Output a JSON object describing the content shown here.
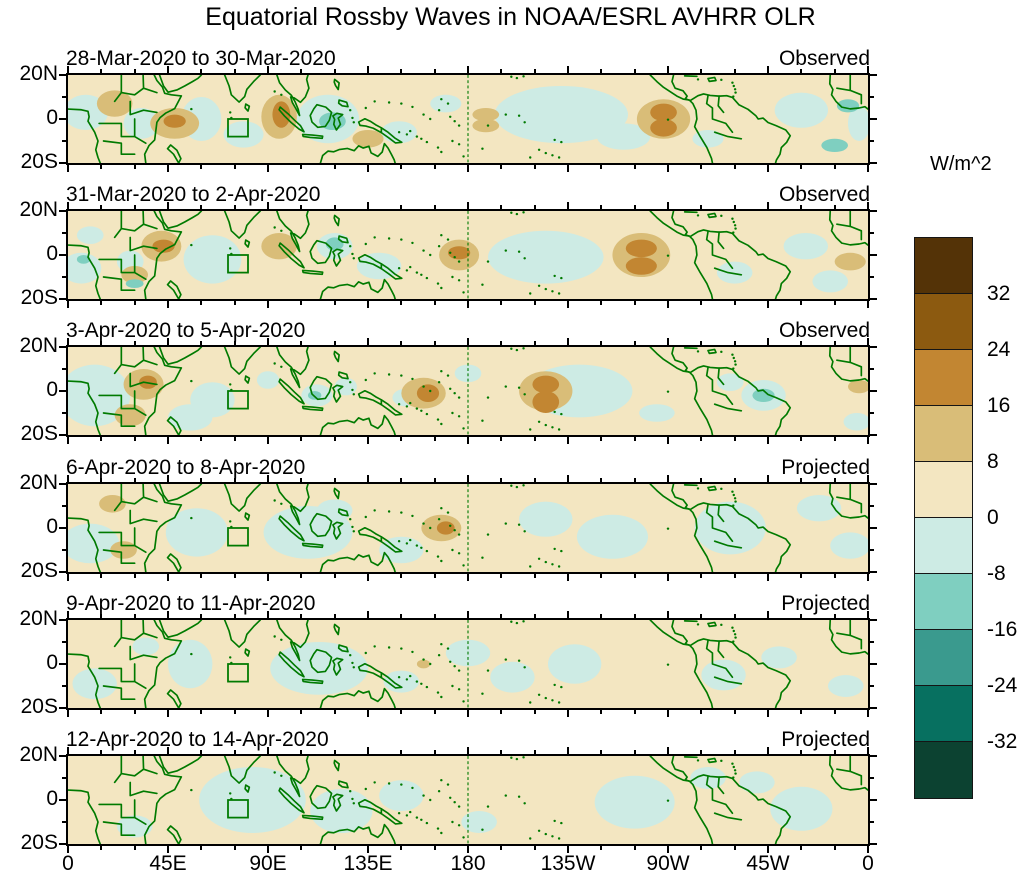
{
  "title": "Equatorial Rossby Waves in NOAA/ESRL AVHRR OLR",
  "colorbar": {
    "title": "W/m^2",
    "tick_labels": [
      "32",
      "24",
      "16",
      "8",
      "0",
      "-8",
      "-16",
      "-24",
      "-32"
    ],
    "colors": [
      "#543307",
      "#8c5a10",
      "#c28632",
      "#d9bd78",
      "#f3e6c1",
      "#cdebe4",
      "#7fcfc0",
      "#3a9a8e",
      "#077060",
      "#0c4231"
    ]
  },
  "axes": {
    "x_tick_labels": [
      "0",
      "45E",
      "90E",
      "135E",
      "180",
      "135W",
      "90W",
      "45W",
      "0"
    ],
    "y_tick_labels": [
      "20N",
      "0",
      "20S"
    ],
    "lon_span_deg": 360,
    "lat_span": "20N to 20S"
  },
  "map_style": {
    "background_color": "#f3e6c1",
    "weak_negative_color": "#cdebe4",
    "moderate_negative_color": "#7fcfc0",
    "moderate_positive_color": "#d9bd78",
    "strong_positive_color": "#c28632",
    "coastline_color": "#007a00",
    "dateline_lon": 180,
    "index_box": {
      "lon_min": 72,
      "lon_max": 81,
      "lat_max": 0,
      "lat_min": -8
    }
  },
  "chart_data": {
    "type": "heatmap",
    "title": "Equatorial Rossby Waves in NOAA/ESRL AVHRR OLR",
    "units": "W/m^2",
    "contour_levels": [
      -32,
      -24,
      -16,
      -8,
      0,
      8,
      16,
      24,
      32
    ],
    "lat_range": [
      -20,
      20
    ],
    "lon_range": [
      0,
      360
    ],
    "anomaly_format": "[lon_deg_east, lat_deg_north, lon_radius_deg, lat_radius_deg, value_w_per_m2]",
    "panels": [
      {
        "date_label": "28-Mar-2020 to 30-Mar-2020",
        "status": "Observed",
        "anomalies": [
          [
            8,
            3,
            10,
            8,
            -4
          ],
          [
            33,
            -2,
            8,
            7,
            -4
          ],
          [
            60,
            0,
            9,
            10,
            -4
          ],
          [
            79,
            -7,
            9,
            6,
            -4
          ],
          [
            117,
            0,
            14,
            11,
            -4
          ],
          [
            149,
            -6,
            8,
            5,
            -4
          ],
          [
            170,
            7,
            7,
            4,
            -4
          ],
          [
            222,
            2,
            30,
            13,
            -4
          ],
          [
            250,
            -8,
            12,
            6,
            -4
          ],
          [
            288,
            -9,
            7,
            4,
            -4
          ],
          [
            330,
            4,
            12,
            8,
            -4
          ],
          [
            356,
            -2,
            5,
            8,
            -4
          ],
          [
            21,
            7,
            8,
            6,
            12
          ],
          [
            48,
            -2,
            11,
            7,
            12
          ],
          [
            95,
            1,
            8,
            10,
            12
          ],
          [
            135,
            -9,
            7,
            4,
            12
          ],
          [
            188,
            2,
            6,
            3,
            12
          ],
          [
            188,
            -3,
            6,
            3,
            12
          ],
          [
            268,
            0,
            12,
            9,
            12
          ],
          [
            351,
            6,
            5,
            3,
            -12
          ],
          [
            345,
            -12,
            6,
            3,
            -12
          ],
          [
            119,
            -1,
            6,
            4,
            -12
          ],
          [
            48,
            -1,
            5,
            3,
            20
          ],
          [
            96,
            2,
            4,
            6,
            20
          ],
          [
            268,
            3,
            6,
            4,
            20
          ],
          [
            268,
            -4,
            6,
            4,
            20
          ]
        ]
      },
      {
        "date_label": "31-Mar-2020 to 2-Apr-2020",
        "status": "Observed",
        "anomalies": [
          [
            6,
            -6,
            9,
            7,
            -4
          ],
          [
            10,
            9,
            6,
            4,
            -4
          ],
          [
            28,
            -3,
            6,
            5,
            -4
          ],
          [
            65,
            -2,
            13,
            11,
            -4
          ],
          [
            120,
            4,
            8,
            6,
            -4
          ],
          [
            140,
            -5,
            10,
            6,
            -4
          ],
          [
            215,
            -1,
            26,
            12,
            -4
          ],
          [
            300,
            -8,
            8,
            5,
            -4
          ],
          [
            332,
            4,
            10,
            6,
            -4
          ],
          [
            343,
            -12,
            8,
            5,
            -4
          ],
          [
            42,
            4,
            9,
            7,
            12
          ],
          [
            30,
            -9,
            6,
            4,
            12
          ],
          [
            95,
            4,
            8,
            6,
            12
          ],
          [
            176,
            0,
            9,
            7,
            12
          ],
          [
            258,
            0,
            13,
            10,
            12
          ],
          [
            352,
            -3,
            7,
            4,
            12
          ],
          [
            7,
            -2,
            3,
            2,
            -12
          ],
          [
            30,
            -13,
            4,
            2,
            -12
          ],
          [
            120,
            5,
            4,
            3,
            -12
          ],
          [
            43,
            4,
            5,
            3,
            20
          ],
          [
            176,
            1,
            5,
            3,
            20
          ],
          [
            258,
            3,
            7,
            4,
            20
          ],
          [
            258,
            -5,
            7,
            4,
            20
          ]
        ]
      },
      {
        "date_label": "3-Apr-2020 to 5-Apr-2020",
        "status": "Observed",
        "anomalies": [
          [
            12,
            -2,
            16,
            14,
            -4
          ],
          [
            55,
            -12,
            10,
            6,
            -4
          ],
          [
            65,
            -4,
            10,
            8,
            -4
          ],
          [
            90,
            5,
            5,
            4,
            -4
          ],
          [
            112,
            -2,
            7,
            5,
            -4
          ],
          [
            125,
            2,
            5,
            4,
            -4
          ],
          [
            152,
            -3,
            6,
            4,
            -4
          ],
          [
            180,
            8,
            6,
            4,
            -4
          ],
          [
            230,
            0,
            24,
            12,
            -4
          ],
          [
            265,
            -10,
            8,
            4,
            -4
          ],
          [
            298,
            4,
            6,
            4,
            -4
          ],
          [
            313,
            -2,
            10,
            7,
            -4
          ],
          [
            355,
            -14,
            6,
            4,
            -4
          ],
          [
            34,
            3,
            9,
            7,
            12
          ],
          [
            28,
            -11,
            7,
            5,
            12
          ],
          [
            160,
            -1,
            10,
            7,
            12
          ],
          [
            215,
            0,
            12,
            9,
            12
          ],
          [
            356,
            2,
            5,
            3,
            12
          ],
          [
            313,
            -2,
            5,
            3,
            -12
          ],
          [
            111,
            -2,
            3,
            2,
            -12
          ],
          [
            36,
            4,
            4,
            3,
            20
          ],
          [
            162,
            -1,
            5,
            4,
            20
          ],
          [
            215,
            3,
            6,
            4,
            20
          ],
          [
            215,
            -5,
            6,
            5,
            20
          ]
        ]
      },
      {
        "date_label": "6-Apr-2020 to 8-Apr-2020",
        "status": "Projected",
        "anomalies": [
          [
            10,
            -7,
            13,
            9,
            -4
          ],
          [
            58,
            -2,
            14,
            11,
            -4
          ],
          [
            108,
            -2,
            20,
            12,
            -4
          ],
          [
            150,
            -10,
            10,
            6,
            -4
          ],
          [
            215,
            4,
            12,
            8,
            -4
          ],
          [
            245,
            -4,
            16,
            10,
            -4
          ],
          [
            298,
            0,
            16,
            12,
            -4
          ],
          [
            338,
            9,
            10,
            6,
            -4
          ],
          [
            352,
            -8,
            9,
            6,
            -4
          ],
          [
            120,
            8,
            8,
            5,
            -4
          ],
          [
            20,
            11,
            6,
            4,
            12
          ],
          [
            25,
            -10,
            6,
            4,
            12
          ],
          [
            168,
            0,
            9,
            6,
            12
          ],
          [
            170,
            0,
            4,
            3,
            20
          ]
        ]
      },
      {
        "date_label": "9-Apr-2020 to 11-Apr-2020",
        "status": "Projected",
        "anomalies": [
          [
            12,
            -9,
            10,
            7,
            -4
          ],
          [
            35,
            8,
            6,
            4,
            -4
          ],
          [
            55,
            0,
            10,
            11,
            -4
          ],
          [
            113,
            -2,
            22,
            12,
            -4
          ],
          [
            150,
            -8,
            8,
            5,
            -4
          ],
          [
            180,
            5,
            10,
            6,
            -4
          ],
          [
            200,
            -6,
            10,
            7,
            -4
          ],
          [
            228,
            0,
            12,
            9,
            -4
          ],
          [
            295,
            -5,
            10,
            7,
            -4
          ],
          [
            320,
            3,
            8,
            5,
            -4
          ],
          [
            350,
            -10,
            8,
            5,
            -4
          ],
          [
            160,
            0,
            3,
            2,
            12
          ]
        ]
      },
      {
        "date_label": "12-Apr-2020 to 14-Apr-2020",
        "status": "Projected",
        "anomalies": [
          [
            30,
            -12,
            8,
            5,
            -4
          ],
          [
            83,
            0,
            24,
            15,
            -4
          ],
          [
            123,
            -5,
            14,
            10,
            -4
          ],
          [
            150,
            2,
            10,
            7,
            -4
          ],
          [
            185,
            -10,
            8,
            5,
            -4
          ],
          [
            255,
            -1,
            18,
            12,
            -4
          ],
          [
            288,
            10,
            8,
            5,
            -4
          ],
          [
            310,
            8,
            8,
            5,
            -4
          ],
          [
            330,
            -4,
            14,
            10,
            -4
          ]
        ]
      }
    ]
  }
}
